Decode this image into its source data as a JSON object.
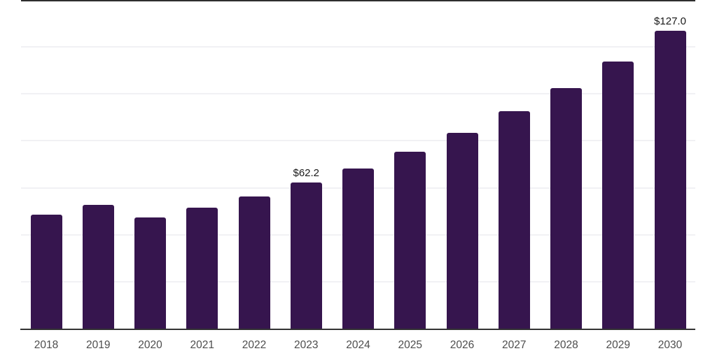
{
  "chart_data": {
    "type": "bar",
    "title": "",
    "categories": [
      "2018",
      "2019",
      "2020",
      "2021",
      "2022",
      "2023",
      "2024",
      "2025",
      "2026",
      "2027",
      "2028",
      "2029",
      "2030"
    ],
    "values": [
      48.6,
      52.8,
      47.4,
      51.6,
      56.3,
      62.2,
      68.3,
      75.4,
      83.5,
      92.7,
      102.6,
      113.9,
      127.0
    ],
    "data_labels": [
      null,
      null,
      null,
      null,
      null,
      "$62.2",
      null,
      null,
      null,
      null,
      null,
      null,
      "$127.0"
    ],
    "xlabel": "",
    "ylabel": "",
    "ylim": [
      0,
      140
    ],
    "gridline_step": 20,
    "grid": true,
    "y_axis_labels_visible": false,
    "legend_position": "none",
    "colors": {
      "bar": "#36154e",
      "gridline": "#f1f1f4",
      "top_border": "#2e2e2e",
      "axis_line": "#333333",
      "tick_label": "#4d4d4d",
      "data_label": "#1a1a1a",
      "background": "#ffffff"
    }
  }
}
